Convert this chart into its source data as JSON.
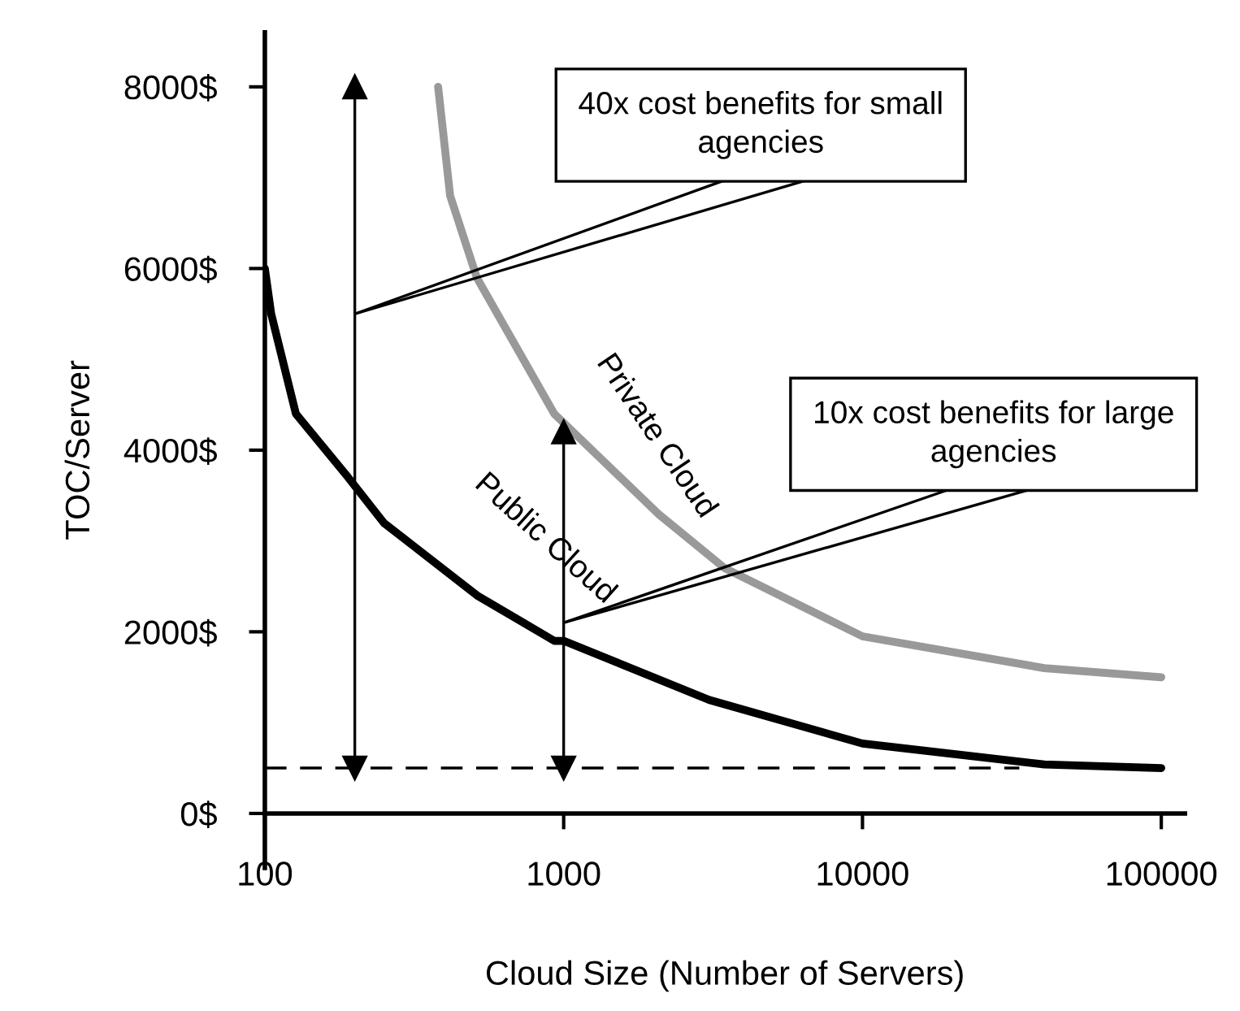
{
  "chart_data": {
    "type": "line",
    "xlabel": "Cloud Size (Number of Servers)",
    "ylabel": "TOC/Server",
    "log": "x",
    "xlim": [
      100,
      120000
    ],
    "xticks": [
      100,
      1000,
      10000,
      100000
    ],
    "ylim": [
      -600,
      8600
    ],
    "yticks": [
      {
        "value": 0,
        "label": "0$"
      },
      {
        "value": 2000,
        "label": "2000$"
      },
      {
        "value": 4000,
        "label": "4000$"
      },
      {
        "value": 6000,
        "label": "6000$"
      },
      {
        "value": 8000,
        "label": "8000$"
      }
    ],
    "marker": "none",
    "line_style": "solid",
    "grid": false,
    "legend": false,
    "series": [
      {
        "name": "Public Cloud",
        "color": "#000000",
        "x": [
          100,
          105,
          127,
          190,
          250,
          513,
          931,
          1000,
          3070,
          10000,
          40600,
          100000
        ],
        "values": [
          6000,
          5500,
          4400,
          3700,
          3200,
          2400,
          1900,
          1900,
          1250,
          770,
          540,
          500
        ]
      },
      {
        "name": "Private Cloud",
        "color": "#999999",
        "x": [
          380,
          417,
          512,
          930,
          2070,
          3460,
          10000,
          40600,
          100000
        ],
        "values": [
          8000,
          6800,
          5900,
          4400,
          3300,
          2700,
          1950,
          1600,
          1500
        ]
      },
      {
        "type": "line",
        "color": "#000000",
        "marker": "triangle",
        "x": [
          200,
          200
        ],
        "values": [
          500,
          8000
        ]
      },
      {
        "type": "line",
        "color": "#000000",
        "marker": "triangle",
        "x": [
          1000,
          1000
        ],
        "values": [
          500,
          4200
        ]
      }
    ],
    "ref_lines": [
      {
        "axis": "y",
        "value": 500,
        "line_style": "dashed",
        "color": "#000000"
      }
    ],
    "annotations": [
      {
        "text": "40x cost benefits for small\nagencies",
        "x": 200,
        "y": 5500
      },
      {
        "text": "10x cost benefits for large\nagencies",
        "x": 1000,
        "y": 2100
      }
    ]
  }
}
